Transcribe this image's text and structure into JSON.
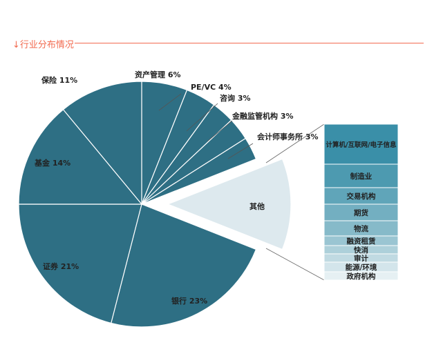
{
  "header": {
    "title": "↓行业分布情况",
    "accent_color": "#f26a4f"
  },
  "chart_data": {
    "type": "pie",
    "variant": "bar-of-pie",
    "slices": [
      {
        "label": "资产管理 6%",
        "name": "资产管理",
        "value": 6
      },
      {
        "label": "PE/VC 4%",
        "name": "PE/VC",
        "value": 4
      },
      {
        "label": "咨询 3%",
        "name": "咨询",
        "value": 3
      },
      {
        "label": "金融监管机构 3%",
        "name": "金融监管机构",
        "value": 3
      },
      {
        "label": "会计师事务所 3%",
        "name": "会计师事务所",
        "value": 3
      },
      {
        "label": "其他",
        "name": "其他",
        "value": 12,
        "exploded": true
      },
      {
        "label": "银行 23%",
        "name": "银行",
        "value": 23
      },
      {
        "label": "证券 21%",
        "name": "证券",
        "value": 21
      },
      {
        "label": "基金 14%",
        "name": "基金",
        "value": 14
      },
      {
        "label": "保险 11%",
        "name": "保险",
        "value": 11
      }
    ],
    "other_breakdown": [
      "计算机/互联网/电子信息",
      "制造业",
      "交易机构",
      "期货",
      "物流",
      "融资租赁",
      "快消",
      "审计",
      "能源/环境",
      "政府机构"
    ],
    "colors": {
      "main": "#2e6f84",
      "other": "#dde9ee",
      "stroke": "#ffffff",
      "bar_top": "#3a8fa8",
      "bar_bottom": "#e6f0f3"
    }
  }
}
